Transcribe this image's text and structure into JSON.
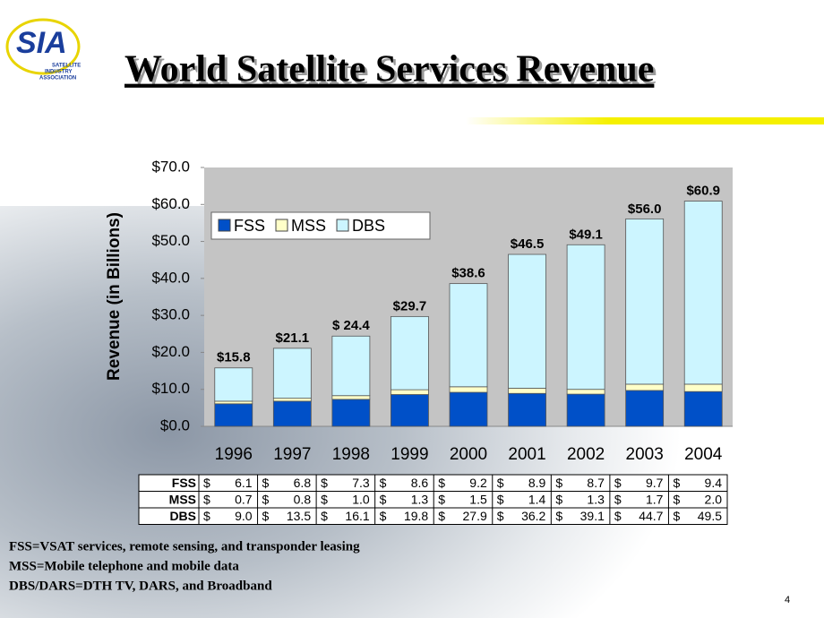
{
  "logo": {
    "name": "SIA",
    "lines": [
      "SATELLITE",
      "INDUSTRY",
      "ASSOCIATION"
    ]
  },
  "chart_data": {
    "type": "stacked_bar",
    "title": "World Satellite Services Revenue",
    "ylabel": "Revenue (in Billions)",
    "categories": [
      "1996",
      "1997",
      "1998",
      "1999",
      "2000",
      "2001",
      "2002",
      "2003",
      "2004"
    ],
    "series": [
      {
        "name": "FSS",
        "color": "#0050c8",
        "values": [
          6.1,
          6.8,
          7.3,
          8.6,
          9.2,
          8.9,
          8.7,
          9.7,
          9.4
        ],
        "value_labels": [
          "6.1",
          "6.8",
          "7.3",
          "8.6",
          "9.2",
          "8.9",
          "8.7",
          "9.7",
          "9.4"
        ]
      },
      {
        "name": "MSS",
        "color": "#ffffc8",
        "values": [
          0.7,
          0.8,
          1.0,
          1.3,
          1.5,
          1.4,
          1.3,
          1.7,
          2.0
        ],
        "value_labels": [
          "0.7",
          "0.8",
          "1.0",
          "1.3",
          "1.5",
          "1.4",
          "1.3",
          "1.7",
          "2.0"
        ]
      },
      {
        "name": "DBS",
        "color": "#ccf5ff",
        "values": [
          9.0,
          13.5,
          16.1,
          19.8,
          27.9,
          36.2,
          39.1,
          44.7,
          49.5
        ],
        "value_labels": [
          "9.0",
          "13.5",
          "16.1",
          "19.8",
          "27.9",
          "36.2",
          "39.1",
          "44.7",
          "49.5"
        ]
      }
    ],
    "totals": [
      15.8,
      21.1,
      24.4,
      29.7,
      38.6,
      46.5,
      49.1,
      56.0,
      60.9
    ],
    "total_labels": [
      "$15.8",
      "$21.1",
      "$ 24.4",
      "$29.7",
      "$38.6",
      "$46.5",
      "$49.1",
      "$56.0",
      "$60.9"
    ],
    "ylim": [
      0,
      70
    ],
    "yticks": [
      {
        "value": 0,
        "label": "$0.0"
      },
      {
        "value": 10,
        "label": "$10.0"
      },
      {
        "value": 20,
        "label": "$20.0"
      },
      {
        "value": 30,
        "label": "$30.0"
      },
      {
        "value": 40,
        "label": "$40.0"
      },
      {
        "value": 50,
        "label": "$50.0"
      },
      {
        "value": 60,
        "label": "$60.0"
      },
      {
        "value": 70,
        "label": "$70.0"
      }
    ],
    "legend": "upper left",
    "table_currency": "$"
  },
  "notes": [
    "FSS=VSAT services, remote sensing, and transponder leasing",
    "MSS=Mobile telephone and mobile data",
    "DBS/DARS=DTH TV, DARS, and Broadband"
  ],
  "page_number": "4"
}
